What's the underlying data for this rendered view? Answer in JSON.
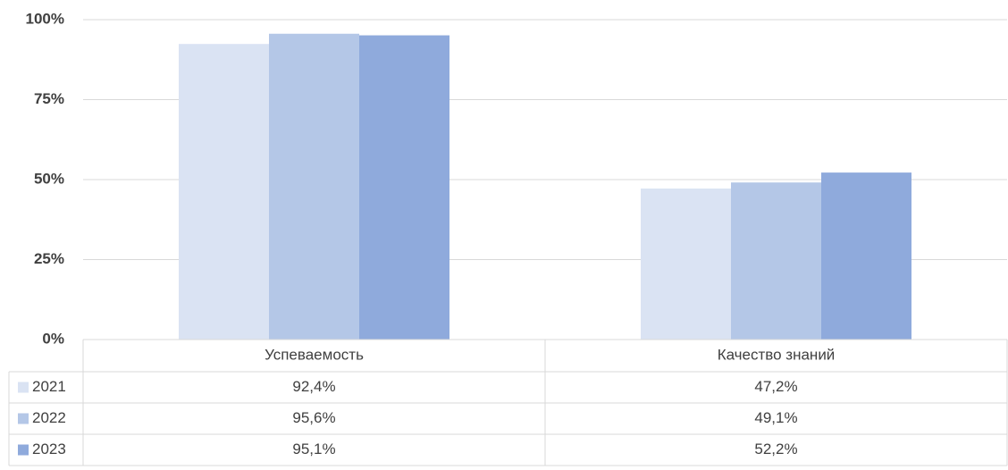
{
  "chart_data": {
    "type": "bar",
    "categories": [
      "Успеваемость",
      "Качество знаний"
    ],
    "series": [
      {
        "name": "2021",
        "color": "#dae3f3",
        "values": [
          92.4,
          47.2
        ],
        "value_labels": [
          "92,4%",
          "47,2%"
        ]
      },
      {
        "name": "2022",
        "color": "#b4c7e7",
        "values": [
          95.6,
          49.1
        ],
        "value_labels": [
          "95,6%",
          "49,1%"
        ]
      },
      {
        "name": "2023",
        "color": "#8faadc",
        "values": [
          95.1,
          52.2
        ],
        "value_labels": [
          "95,1%",
          "52,2%"
        ]
      }
    ],
    "ylim": [
      0,
      100
    ],
    "yticks": [
      {
        "value": 0,
        "label": "0%"
      },
      {
        "value": 25,
        "label": "25%"
      },
      {
        "value": 50,
        "label": "50%"
      },
      {
        "value": 75,
        "label": "75%"
      },
      {
        "value": 100,
        "label": "100%"
      }
    ],
    "grid": true
  }
}
